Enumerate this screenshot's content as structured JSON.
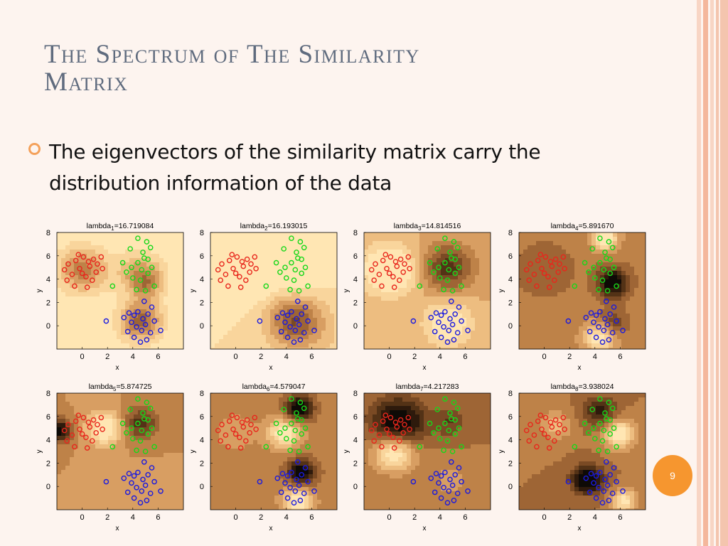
{
  "slide": {
    "title_line1": "The Spectrum of The Similarity",
    "title_line2": "Matrix",
    "bullet_text_line1": "The eigenvectors of the similarity matrix carry the",
    "bullet_text_line2": "distribution information of the data",
    "page_number": "9",
    "colors": {
      "title": "#5f6b7e",
      "accent": "#f6962f",
      "background": "#fdf4ef"
    }
  },
  "chart_data": [
    {
      "type": "scatter",
      "title": "lambda",
      "subscript": "1",
      "value_text": "=16.719084",
      "xlabel": "x",
      "ylabel": "y",
      "xticks": [
        "0",
        "2",
        "4",
        "6"
      ],
      "yticks": [
        "8",
        "6",
        "4",
        "2",
        "0"
      ],
      "xlim": [
        -2,
        8
      ],
      "ylim": [
        -2,
        8
      ]
    },
    {
      "type": "scatter",
      "title": "lambda",
      "subscript": "2",
      "value_text": "=16.193015",
      "xlabel": "x",
      "ylabel": "y",
      "xticks": [
        "0",
        "2",
        "4",
        "6"
      ],
      "yticks": [
        "8",
        "6",
        "4",
        "2",
        "0"
      ],
      "xlim": [
        -2,
        8
      ],
      "ylim": [
        -2,
        8
      ]
    },
    {
      "type": "scatter",
      "title": "lambda",
      "subscript": "3",
      "value_text": "=14.814516",
      "xlabel": "x",
      "ylabel": "y",
      "xticks": [
        "0",
        "2",
        "4",
        "6"
      ],
      "yticks": [
        "8",
        "6",
        "4",
        "2",
        "0"
      ],
      "xlim": [
        -2,
        8
      ],
      "ylim": [
        -2,
        8
      ]
    },
    {
      "type": "scatter",
      "title": "lambda",
      "subscript": "4",
      "value_text": "=5.891670",
      "xlabel": "x",
      "ylabel": "y",
      "xticks": [
        "0",
        "2",
        "4",
        "6"
      ],
      "yticks": [
        "8",
        "6",
        "4",
        "2",
        "0"
      ],
      "xlim": [
        -2,
        8
      ],
      "ylim": [
        -2,
        8
      ]
    },
    {
      "type": "scatter",
      "title": "lambda",
      "subscript": "5",
      "value_text": "=5.874725",
      "xlabel": "x",
      "ylabel": "y",
      "xticks": [
        "0",
        "2",
        "4",
        "6"
      ],
      "yticks": [
        "8",
        "6",
        "4",
        "2",
        "0"
      ],
      "xlim": [
        -2,
        8
      ],
      "ylim": [
        -2,
        8
      ]
    },
    {
      "type": "scatter",
      "title": "lambda",
      "subscript": "6",
      "value_text": "=4.579047",
      "xlabel": "x",
      "ylabel": "y",
      "xticks": [
        "0",
        "2",
        "4",
        "6"
      ],
      "yticks": [
        "8",
        "6",
        "4",
        "2",
        "0"
      ],
      "xlim": [
        -2,
        8
      ],
      "ylim": [
        -2,
        8
      ]
    },
    {
      "type": "scatter",
      "title": "lambda",
      "subscript": "7",
      "value_text": "=4.217283",
      "xlabel": "x",
      "ylabel": "y",
      "xticks": [
        "0",
        "2",
        "4",
        "6"
      ],
      "yticks": [
        "8",
        "6",
        "4",
        "2",
        "0"
      ],
      "xlim": [
        -2,
        8
      ],
      "ylim": [
        -2,
        8
      ]
    },
    {
      "type": "scatter",
      "title": "lambda",
      "subscript": "8",
      "value_text": "=3.938024",
      "xlabel": "x",
      "ylabel": "y",
      "xticks": [
        "0",
        "2",
        "4",
        "6"
      ],
      "yticks": [
        "8",
        "6",
        "4",
        "2",
        "0"
      ],
      "xlim": [
        -2,
        8
      ],
      "ylim": [
        -2,
        8
      ]
    }
  ],
  "scatter_clusters": {
    "red": {
      "color": "#e8261c",
      "points": [
        [
          -1.4,
          4.8
        ],
        [
          -1.1,
          5.3
        ],
        [
          -0.8,
          4.4
        ],
        [
          -0.5,
          5.6
        ],
        [
          -0.2,
          4.9
        ],
        [
          0.1,
          5.9
        ],
        [
          0.3,
          4.2
        ],
        [
          0.6,
          5.1
        ],
        [
          0.9,
          5.7
        ],
        [
          1.1,
          4.6
        ],
        [
          1.2,
          5.3
        ],
        [
          0.4,
          3.3
        ],
        [
          -0.6,
          3.4
        ],
        [
          0.8,
          3.9
        ],
        [
          -1.2,
          3.9
        ],
        [
          1.5,
          5.9
        ],
        [
          0.0,
          4.5
        ],
        [
          0.5,
          5.5
        ],
        [
          1.6,
          4.9
        ],
        [
          -0.3,
          6.1
        ]
      ]
    },
    "green": {
      "color": "#16d81a",
      "points": [
        [
          4.4,
          7.5
        ],
        [
          5.1,
          7.2
        ],
        [
          3.8,
          6.6
        ],
        [
          4.8,
          6.3
        ],
        [
          5.4,
          6.7
        ],
        [
          5.2,
          5.7
        ],
        [
          4.4,
          5.4
        ],
        [
          3.9,
          5.0
        ],
        [
          4.7,
          4.8
        ],
        [
          5.5,
          5.0
        ],
        [
          4.0,
          4.1
        ],
        [
          4.6,
          3.9
        ],
        [
          5.2,
          4.5
        ],
        [
          3.5,
          4.6
        ],
        [
          4.3,
          3.1
        ],
        [
          5.7,
          3.4
        ],
        [
          3.2,
          5.4
        ],
        [
          4.9,
          5.8
        ],
        [
          2.4,
          3.4
        ],
        [
          5.0,
          3.0
        ]
      ]
    },
    "blue": {
      "color": "#1a1ae0",
      "points": [
        [
          3.7,
          1.1
        ],
        [
          4.1,
          0.9
        ],
        [
          4.4,
          1.2
        ],
        [
          4.8,
          0.6
        ],
        [
          5.2,
          1.0
        ],
        [
          5.5,
          1.6
        ],
        [
          3.9,
          0.3
        ],
        [
          4.3,
          -0.1
        ],
        [
          4.7,
          -0.4
        ],
        [
          5.0,
          0.1
        ],
        [
          5.4,
          -0.6
        ],
        [
          3.6,
          -0.5
        ],
        [
          4.1,
          -1.0
        ],
        [
          4.6,
          -1.4
        ],
        [
          5.1,
          -1.2
        ],
        [
          5.7,
          0.4
        ],
        [
          6.2,
          -0.4
        ],
        [
          1.9,
          0.4
        ],
        [
          3.3,
          0.7
        ],
        [
          4.9,
          2.1
        ]
      ]
    }
  }
}
